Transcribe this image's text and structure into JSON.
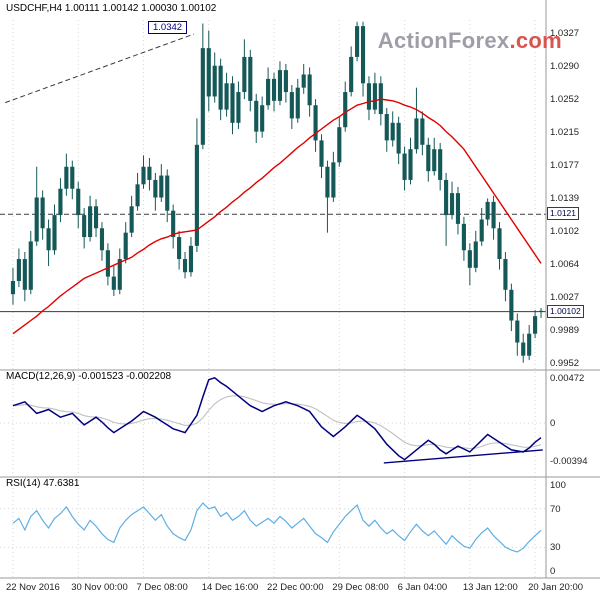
{
  "header": {
    "title": "USDCHF,H4 1.00111 1.00142 1.00030 1.00102"
  },
  "watermark": {
    "text": "ActionForex",
    "suffix": ".com"
  },
  "colors": {
    "candle": "#155858",
    "ma": "#E10000",
    "macd": "#000080",
    "signal": "#C0C0C0",
    "rsi": "#5FAEE3",
    "grid": "#D6D6D6",
    "axis": "#9A9A9A",
    "level": "#3A3A3A",
    "annotation": "#000080",
    "watermark_gray": "#9E9EA8",
    "watermark_red": "#D8544F",
    "background": "#FFFFFF"
  },
  "chart_data": {
    "type": "candlestick",
    "symbol": "USDCHF",
    "timeframe": "H4",
    "last_bar": {
      "open": "1.00111",
      "high": "1.00142",
      "low": "1.00030",
      "close": "1.00102"
    },
    "x_labels": [
      {
        "text": "22 Nov 2016",
        "bar": 0
      },
      {
        "text": "30 Nov 00:00",
        "bar": 11
      },
      {
        "text": "7 Dec 08:00",
        "bar": 22
      },
      {
        "text": "14 Dec 16:00",
        "bar": 33
      },
      {
        "text": "22 Dec 00:00",
        "bar": 44
      },
      {
        "text": "29 Dec 08:00",
        "bar": 55
      },
      {
        "text": "6 Jan 04:00",
        "bar": 66
      },
      {
        "text": "13 Jan 12:00",
        "bar": 77
      },
      {
        "text": "20 Jan 20:00",
        "bar": 88
      }
    ],
    "price_panel": {
      "ylim": [
        0.9946,
        1.0342
      ],
      "y_ticks": [
        "1.0327",
        "1.0290",
        "1.0252",
        "1.0215",
        "1.0177",
        "1.0139",
        "1.0102",
        "1.0064",
        "1.0027",
        "0.9989",
        "0.9952"
      ],
      "levels": [
        {
          "value": 1.0121,
          "label": "1.0121",
          "style": "dashed"
        },
        {
          "value": 1.00102,
          "label": "1.00102",
          "style": "solid"
        }
      ],
      "trendline": {
        "from_bar": -1.3,
        "from_price": 1.0248,
        "to_bar": 30.5,
        "to_price": 1.0326,
        "style": "dashed",
        "label": "1.0342"
      },
      "candles": [
        [
          1.003,
          1.006,
          1.0018,
          1.0045
        ],
        [
          1.0045,
          1.0082,
          1.0038,
          1.007
        ],
        [
          1.007,
          1.0078,
          1.0022,
          1.0035
        ],
        [
          1.0035,
          1.0102,
          1.003,
          1.009
        ],
        [
          1.009,
          1.0175,
          1.0085,
          1.014
        ],
        [
          1.014,
          1.0148,
          1.0092,
          1.0105
        ],
        [
          1.0105,
          1.0115,
          1.0062,
          1.008
        ],
        [
          1.008,
          1.0132,
          1.0075,
          1.012
        ],
        [
          1.012,
          1.0162,
          1.0112,
          1.015
        ],
        [
          1.015,
          1.019,
          1.0142,
          1.0175
        ],
        [
          1.0175,
          1.0182,
          1.0138,
          1.015
        ],
        [
          1.015,
          1.0158,
          1.0105,
          1.012
        ],
        [
          1.012,
          1.0128,
          1.0082,
          1.0095
        ],
        [
          1.0095,
          1.0142,
          1.009,
          1.013
        ],
        [
          1.013,
          1.0138,
          1.0095,
          1.0105
        ],
        [
          1.0105,
          1.0112,
          1.0068,
          1.008
        ],
        [
          1.008,
          1.0088,
          1.004,
          1.005
        ],
        [
          1.005,
          1.0062,
          1.0028,
          1.0035
        ],
        [
          1.0035,
          1.0082,
          1.003,
          1.007
        ],
        [
          1.007,
          1.0112,
          1.0065,
          1.01
        ],
        [
          1.01,
          1.0142,
          1.0095,
          1.013
        ],
        [
          1.013,
          1.0168,
          1.0125,
          1.0155
        ],
        [
          1.0155,
          1.0188,
          1.015,
          1.0175
        ],
        [
          1.0175,
          1.0185,
          1.0148,
          1.016
        ],
        [
          1.016,
          1.0168,
          1.0125,
          1.014
        ],
        [
          1.014,
          1.0178,
          1.0135,
          1.0165
        ],
        [
          1.0165,
          1.0172,
          1.0112,
          1.0125
        ],
        [
          1.0125,
          1.0132,
          1.0082,
          1.0095
        ],
        [
          1.0095,
          1.0102,
          1.0058,
          1.007
        ],
        [
          1.007,
          1.0078,
          1.0048,
          1.0055
        ],
        [
          1.0055,
          1.0095,
          1.005,
          1.0085
        ],
        [
          1.0085,
          1.023,
          1.0078,
          1.02
        ],
        [
          1.02,
          1.0338,
          1.0195,
          1.031
        ],
        [
          1.031,
          1.033,
          1.0238,
          1.0255
        ],
        [
          1.0255,
          1.0305,
          1.0248,
          1.029
        ],
        [
          1.029,
          1.0298,
          1.0228,
          1.024
        ],
        [
          1.024,
          1.0282,
          1.0232,
          1.027
        ],
        [
          1.027,
          1.0278,
          1.0212,
          1.0225
        ],
        [
          1.0225,
          1.0272,
          1.0218,
          1.026
        ],
        [
          1.026,
          1.032,
          1.0252,
          1.03
        ],
        [
          1.03,
          1.0308,
          1.0238,
          1.025
        ],
        [
          1.025,
          1.0258,
          1.0202,
          1.0215
        ],
        [
          1.0215,
          1.0255,
          1.0208,
          1.0245
        ],
        [
          1.0245,
          1.0288,
          1.024,
          1.0275
        ],
        [
          1.0275,
          1.0282,
          1.0238,
          1.025
        ],
        [
          1.025,
          1.0295,
          1.0245,
          1.0285
        ],
        [
          1.0285,
          1.0292,
          1.0248,
          1.026
        ],
        [
          1.026,
          1.0268,
          1.0218,
          1.023
        ],
        [
          1.023,
          1.0275,
          1.0225,
          1.0265
        ],
        [
          1.0265,
          1.0292,
          1.0258,
          1.028
        ],
        [
          1.028,
          1.0288,
          1.0232,
          1.0245
        ],
        [
          1.0245,
          1.0252,
          1.0192,
          1.0205
        ],
        [
          1.0205,
          1.0212,
          1.0162,
          1.0175
        ],
        [
          1.0175,
          1.0182,
          1.01,
          1.014
        ],
        [
          1.014,
          1.0192,
          1.0135,
          1.018
        ],
        [
          1.018,
          1.0232,
          1.0175,
          1.022
        ],
        [
          1.022,
          1.0272,
          1.0215,
          1.026
        ],
        [
          1.026,
          1.0312,
          1.0255,
          1.03
        ],
        [
          1.03,
          1.034,
          1.0295,
          1.0335
        ],
        [
          1.0335,
          1.034,
          1.0255,
          1.027
        ],
        [
          1.027,
          1.0278,
          1.0228,
          1.024
        ],
        [
          1.024,
          1.0282,
          1.0235,
          1.027
        ],
        [
          1.027,
          1.0278,
          1.0222,
          1.0235
        ],
        [
          1.0235,
          1.0242,
          1.0192,
          1.0205
        ],
        [
          1.0205,
          1.0238,
          1.0198,
          1.0225
        ],
        [
          1.0225,
          1.0232,
          1.0178,
          1.019
        ],
        [
          1.019,
          1.0198,
          1.0148,
          1.016
        ],
        [
          1.016,
          1.0208,
          1.0155,
          1.0195
        ],
        [
          1.0195,
          1.0265,
          1.019,
          1.023
        ],
        [
          1.023,
          1.0238,
          1.0188,
          1.02
        ],
        [
          1.02,
          1.0208,
          1.0158,
          1.017
        ],
        [
          1.017,
          1.0208,
          1.0165,
          1.0195
        ],
        [
          1.0195,
          1.0202,
          1.0148,
          1.016
        ],
        [
          1.016,
          1.0168,
          1.0085,
          1.012
        ],
        [
          1.012,
          1.0158,
          1.0115,
          1.0145
        ],
        [
          1.0145,
          1.0152,
          1.0098,
          1.011
        ],
        [
          1.011,
          1.0118,
          1.0068,
          1.008
        ],
        [
          1.008,
          1.0088,
          1.004,
          1.006
        ],
        [
          1.006,
          1.0102,
          1.0055,
          1.009
        ],
        [
          1.009,
          1.0128,
          1.0085,
          1.0115
        ],
        [
          1.0115,
          1.0139,
          1.0108,
          1.0135
        ],
        [
          1.0135,
          1.0142,
          1.0092,
          1.0105
        ],
        [
          1.0105,
          1.0112,
          1.0058,
          1.007
        ],
        [
          1.007,
          1.0078,
          1.0022,
          1.0035
        ],
        [
          1.0035,
          1.0042,
          0.9988,
          1.0
        ],
        [
          1.0,
          1.0008,
          0.996,
          0.9975
        ],
        [
          0.9975,
          0.9985,
          0.9952,
          0.996
        ],
        [
          0.996,
          0.9995,
          0.9955,
          0.9985
        ],
        [
          0.9985,
          1.0012,
          0.998,
          1.0005
        ],
        [
          1.00111,
          1.00142,
          1.0003,
          1.00102
        ]
      ],
      "ma": {
        "color": "#E10000",
        "values": [
          0.9985,
          0.999,
          0.9995,
          1.0,
          1.0005,
          1.0011,
          1.0016,
          1.0022,
          1.0028,
          1.0033,
          1.0038,
          1.0043,
          1.0048,
          1.0051,
          1.0054,
          1.0057,
          1.006,
          1.0063,
          1.0066,
          1.0069,
          1.0072,
          1.0077,
          1.0081,
          1.0086,
          1.009,
          1.0093,
          1.0095,
          1.0098,
          1.01,
          1.0101,
          1.0102,
          1.0103,
          1.0108,
          1.0113,
          1.0118,
          1.0124,
          1.0129,
          1.0135,
          1.014,
          1.0146,
          1.0151,
          1.0157,
          1.0162,
          1.0168,
          1.0174,
          1.0179,
          1.0185,
          1.0191,
          1.0197,
          1.0202,
          1.0208,
          1.0213,
          1.0218,
          1.0223,
          1.0228,
          1.0232,
          1.0237,
          1.0241,
          1.0245,
          1.0247,
          1.0249,
          1.025,
          1.0252,
          1.0251,
          1.025,
          1.0248,
          1.0245,
          1.0243,
          1.024,
          1.0236,
          1.0231,
          1.0227,
          1.0222,
          1.0215,
          1.0209,
          1.0202,
          1.0195,
          1.0185,
          1.0175,
          1.0165,
          1.0155,
          1.0145,
          1.0135,
          1.0125,
          1.0115,
          1.0105,
          1.0095,
          1.0085,
          1.0075,
          1.0065
        ]
      }
    },
    "macd_panel": {
      "label": "MACD(12,26,9) -0.001523 -0.002208",
      "ylim": [
        -0.0053,
        0.0053
      ],
      "y_ticks": [
        {
          "text": "0.00472",
          "value": 0.00472
        },
        {
          "text": "0",
          "value": 0
        },
        {
          "text": "-0.00394",
          "value": -0.00394
        }
      ],
      "signal_period": 9,
      "trendline": {
        "from_bar": 62.5,
        "from_value": -0.00415,
        "to_bar": 89.3,
        "to_value": -0.0028
      },
      "macd": [
        0.0018,
        0.002,
        0.0022,
        0.0016,
        0.001,
        0.0012,
        0.0014,
        0.001,
        0.0006,
        0.0008,
        0.001,
        0.0004,
        -0.0002,
        0.0002,
        0.0006,
        0.0001,
        -0.0005,
        -0.001,
        -0.0006,
        -0.0002,
        0.0002,
        0.0007,
        0.0012,
        0.0009,
        0.0006,
        0.0002,
        -0.0002,
        -0.0006,
        -0.0008,
        -0.001,
        -0.0001,
        0.0008,
        0.0027,
        0.0045,
        0.0047,
        0.0042,
        0.0038,
        0.0033,
        0.0028,
        0.0023,
        0.0018,
        0.0015,
        0.0012,
        0.0015,
        0.0018,
        0.002,
        0.0022,
        0.002,
        0.0018,
        0.0015,
        0.0012,
        0.0004,
        -0.0004,
        -0.0009,
        -0.0014,
        -0.0009,
        -0.0004,
        0.0002,
        0.0008,
        0.0004,
        -0.0001,
        -0.0006,
        -0.0014,
        -0.0022,
        -0.0028,
        -0.0034,
        -0.0038,
        -0.0033,
        -0.0028,
        -0.0023,
        -0.0018,
        -0.0022,
        -0.0028,
        -0.0032,
        -0.0028,
        -0.0024,
        -0.0027,
        -0.003,
        -0.0024,
        -0.0018,
        -0.0012,
        -0.0016,
        -0.002,
        -0.0024,
        -0.0028,
        -0.0029,
        -0.003,
        -0.0026,
        -0.002,
        -0.001523
      ]
    },
    "rsi_panel": {
      "label": "RSI(14) 47.6381",
      "ylim": [
        0,
        100
      ],
      "y_ticks": [
        {
          "text": "100",
          "value": 100
        },
        {
          "text": "70",
          "value": 70
        },
        {
          "text": "30",
          "value": 30
        },
        {
          "text": "0",
          "value": 0
        }
      ],
      "levels": [
        70,
        30
      ],
      "values": [
        55,
        60,
        48,
        62,
        68,
        58,
        50,
        60,
        65,
        72,
        62,
        54,
        48,
        58,
        52,
        44,
        38,
        35,
        50,
        58,
        64,
        68,
        72,
        65,
        58,
        64,
        52,
        44,
        40,
        37,
        48,
        68,
        76,
        70,
        72,
        62,
        66,
        58,
        62,
        68,
        58,
        52,
        56,
        60,
        55,
        62,
        57,
        50,
        55,
        60,
        52,
        44,
        40,
        35,
        46,
        54,
        62,
        68,
        74,
        58,
        52,
        58,
        50,
        44,
        48,
        42,
        37,
        46,
        54,
        47,
        42,
        47,
        40,
        33,
        42,
        36,
        31,
        29,
        38,
        45,
        50,
        42,
        36,
        30,
        27,
        25,
        29,
        36,
        42,
        47.64
      ]
    }
  }
}
